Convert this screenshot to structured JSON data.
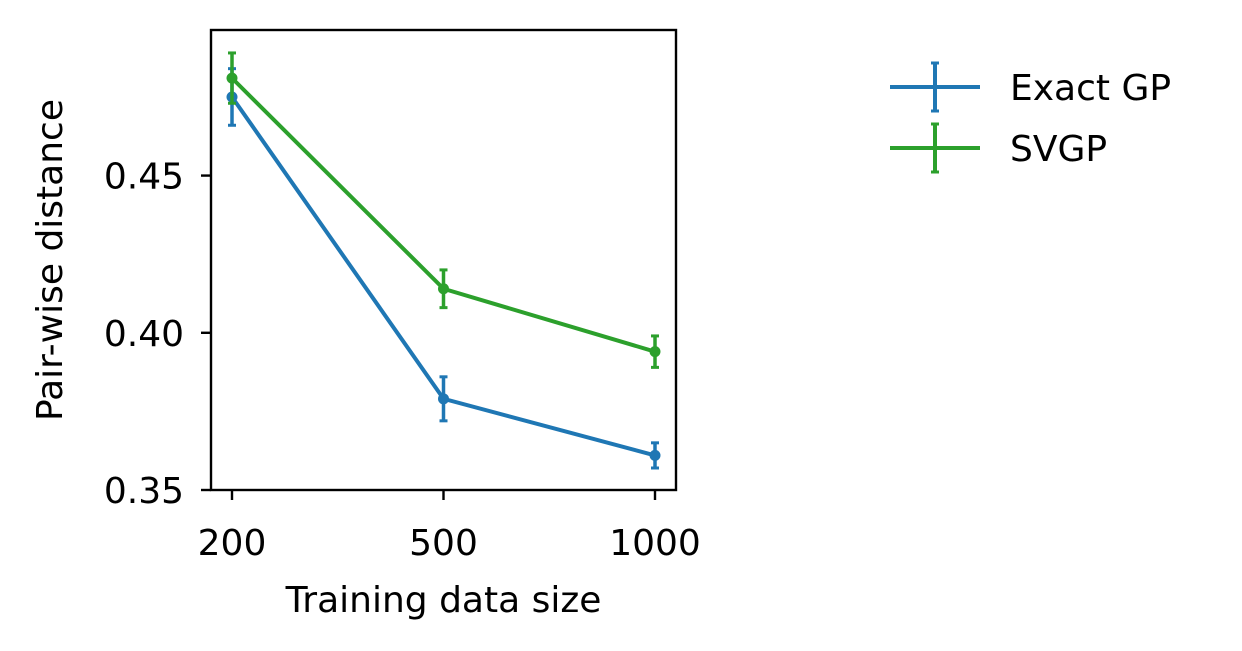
{
  "chart_data": {
    "type": "line",
    "xlabel": "Training data size",
    "ylabel": "Pair-wise distance",
    "x_ticks": [
      "200",
      "500",
      "1000"
    ],
    "y_ticks": [
      "0.35",
      "0.40",
      "0.45"
    ],
    "ylim": [
      0.35,
      0.4963
    ],
    "grid": false,
    "legend_position": "outside-right-top",
    "series": [
      {
        "name": "Exact GP",
        "color": "#1f77b4",
        "points": [
          {
            "x": "200",
            "y": 0.475,
            "err": 0.009
          },
          {
            "x": "500",
            "y": 0.379,
            "err": 0.007
          },
          {
            "x": "1000",
            "y": 0.361,
            "err": 0.004
          }
        ]
      },
      {
        "name": "SVGP",
        "color": "#2ca02c",
        "points": [
          {
            "x": "200",
            "y": 0.481,
            "err": 0.008
          },
          {
            "x": "500",
            "y": 0.414,
            "err": 0.006
          },
          {
            "x": "1000",
            "y": 0.394,
            "err": 0.005
          }
        ]
      }
    ]
  }
}
